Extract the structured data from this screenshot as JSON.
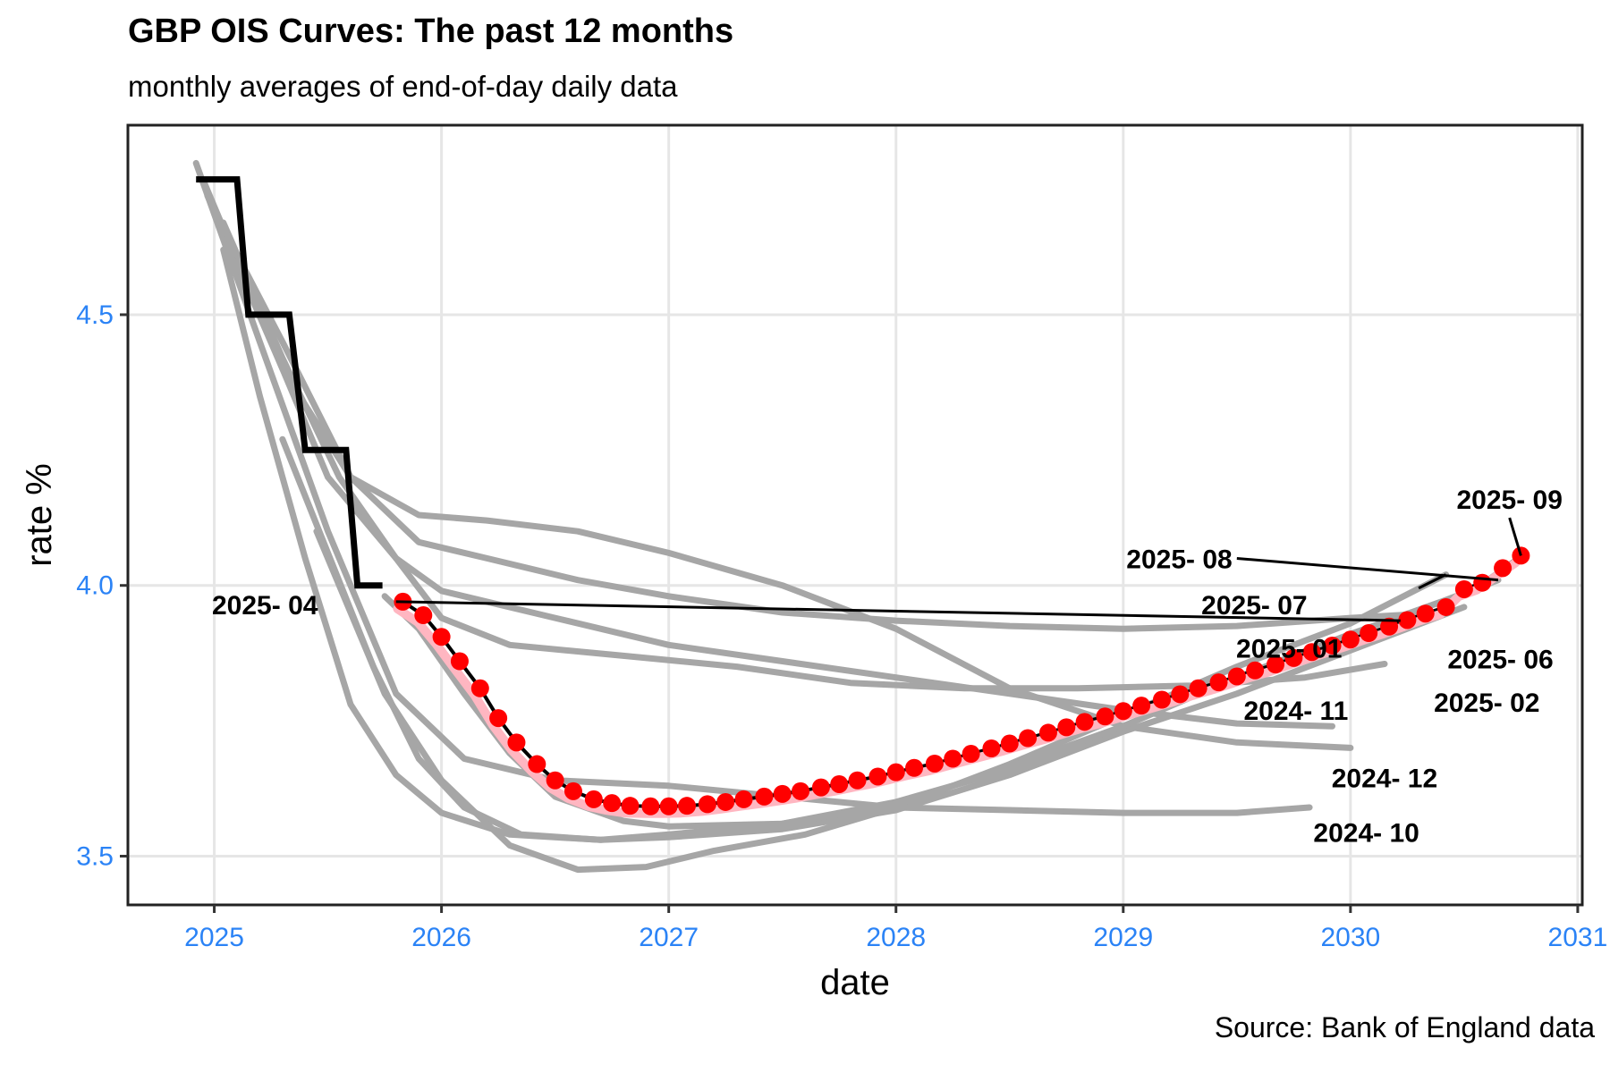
{
  "chart_data": {
    "type": "line",
    "title": "GBP OIS Curves: The past 12 months",
    "subtitle": "monthly averages of end-of-day daily data",
    "caption": "Source: Bank of England data",
    "xlabel": "date",
    "ylabel": "rate %",
    "xlim": [
      2024.62,
      2031.02
    ],
    "ylim": [
      3.41,
      4.85
    ],
    "x_ticks": [
      2025,
      2026,
      2027,
      2028,
      2029,
      2030,
      2031
    ],
    "y_ticks": [
      3.5,
      4.0,
      4.5
    ],
    "grid": true,
    "legend": "none",
    "colors": {
      "historic": "#a6a6a6",
      "policy_step": "#000000",
      "latest_points": "#ff0000",
      "latest_smooth": "#ffb6c1",
      "ticks": "#2b83f6"
    },
    "series": [
      {
        "name": "2024- 10",
        "label_pos": [
          2030.07,
          3.545
        ],
        "label_align": "middle",
        "points": [
          [
            2024.92,
            4.78
          ],
          [
            2025.2,
            4.45
          ],
          [
            2025.5,
            4.1
          ],
          [
            2025.8,
            3.8
          ],
          [
            2026.1,
            3.68
          ],
          [
            2026.5,
            3.64
          ],
          [
            2027.0,
            3.63
          ],
          [
            2027.5,
            3.61
          ],
          [
            2028.0,
            3.59
          ],
          [
            2028.5,
            3.585
          ],
          [
            2029.0,
            3.58
          ],
          [
            2029.5,
            3.58
          ],
          [
            2029.82,
            3.59
          ]
        ]
      },
      {
        "name": "2024- 11",
        "label_pos": [
          2029.76,
          3.77
        ],
        "label_align": "middle",
        "points": [
          [
            2024.95,
            4.75
          ],
          [
            2025.2,
            4.5
          ],
          [
            2025.5,
            4.2
          ],
          [
            2025.8,
            4.05
          ],
          [
            2026.0,
            3.99
          ],
          [
            2026.5,
            3.94
          ],
          [
            2027.0,
            3.89
          ],
          [
            2027.5,
            3.86
          ],
          [
            2028.0,
            3.83
          ],
          [
            2028.5,
            3.8
          ],
          [
            2029.0,
            3.77
          ],
          [
            2029.5,
            3.745
          ],
          [
            2029.92,
            3.74
          ]
        ]
      },
      {
        "name": "2024- 12",
        "label_pos": [
          2030.15,
          3.645
        ],
        "label_align": "middle",
        "points": [
          [
            2024.97,
            4.72
          ],
          [
            2025.3,
            4.4
          ],
          [
            2025.6,
            4.2
          ],
          [
            2025.9,
            4.13
          ],
          [
            2026.2,
            4.12
          ],
          [
            2026.6,
            4.1
          ],
          [
            2027.0,
            4.06
          ],
          [
            2027.5,
            4.0
          ],
          [
            2028.0,
            3.92
          ],
          [
            2028.5,
            3.81
          ],
          [
            2029.0,
            3.74
          ],
          [
            2029.5,
            3.71
          ],
          [
            2030.0,
            3.7
          ]
        ]
      },
      {
        "name": "2025- 01",
        "label_pos": [
          2029.73,
          3.885
        ],
        "label_align": "middle",
        "points": [
          [
            2024.99,
            4.7
          ],
          [
            2025.3,
            4.45
          ],
          [
            2025.6,
            4.2
          ],
          [
            2025.9,
            4.08
          ],
          [
            2026.2,
            4.05
          ],
          [
            2026.6,
            4.01
          ],
          [
            2027.0,
            3.98
          ],
          [
            2027.5,
            3.95
          ],
          [
            2028.0,
            3.935
          ],
          [
            2028.5,
            3.925
          ],
          [
            2029.0,
            3.92
          ],
          [
            2029.5,
            3.925
          ],
          [
            2030.0,
            3.94
          ],
          [
            2030.42,
            3.95
          ]
        ]
      },
      {
        "name": "2025- 02",
        "label_pos": [
          2030.6,
          3.785
        ],
        "label_align": "middle",
        "points": [
          [
            2025.04,
            4.67
          ],
          [
            2025.3,
            4.42
          ],
          [
            2025.55,
            4.2
          ],
          [
            2025.8,
            4.05
          ],
          [
            2026.0,
            3.94
          ],
          [
            2026.3,
            3.89
          ],
          [
            2026.8,
            3.87
          ],
          [
            2027.3,
            3.85
          ],
          [
            2027.8,
            3.82
          ],
          [
            2028.3,
            3.81
          ],
          [
            2028.8,
            3.81
          ],
          [
            2029.3,
            3.815
          ],
          [
            2029.8,
            3.83
          ],
          [
            2030.15,
            3.855
          ]
        ]
      },
      {
        "name": "2025- 04",
        "label_pos": [
          2024.99,
          3.965
        ],
        "label_align": "start",
        "points": [
          [
            2025.04,
            4.62
          ],
          [
            2025.2,
            4.35
          ],
          [
            2025.4,
            4.05
          ],
          [
            2025.6,
            3.78
          ],
          [
            2025.8,
            3.65
          ],
          [
            2026.0,
            3.58
          ],
          [
            2026.3,
            3.54
          ],
          [
            2026.7,
            3.53
          ],
          [
            2027.0,
            3.535
          ],
          [
            2027.5,
            3.55
          ],
          [
            2028.0,
            3.585
          ],
          [
            2028.5,
            3.65
          ],
          [
            2029.0,
            3.73
          ],
          [
            2029.5,
            3.8
          ],
          [
            2030.0,
            3.88
          ],
          [
            2030.5,
            3.96
          ]
        ]
      },
      {
        "name": "2025- 06",
        "label_pos": [
          2030.66,
          3.865
        ],
        "label_align": "middle",
        "points": [
          [
            2025.3,
            4.27
          ],
          [
            2025.5,
            4.06
          ],
          [
            2025.7,
            3.85
          ],
          [
            2025.9,
            3.68
          ],
          [
            2026.1,
            3.59
          ],
          [
            2026.35,
            3.54
          ],
          [
            2026.7,
            3.53
          ],
          [
            2027.0,
            3.54
          ],
          [
            2027.5,
            3.56
          ],
          [
            2028.0,
            3.6
          ],
          [
            2028.5,
            3.66
          ],
          [
            2029.0,
            3.74
          ],
          [
            2029.5,
            3.83
          ],
          [
            2030.0,
            3.91
          ],
          [
            2030.4,
            3.97
          ]
        ]
      },
      {
        "name": "2025- 07",
        "label_pos": [
          2029.81,
          3.965
        ],
        "label_align": "end",
        "points": [
          [
            2025.45,
            4.1
          ],
          [
            2025.6,
            3.95
          ],
          [
            2025.75,
            3.8
          ],
          [
            2026.0,
            3.64
          ],
          [
            2026.3,
            3.52
          ],
          [
            2026.6,
            3.475
          ],
          [
            2026.9,
            3.48
          ],
          [
            2027.2,
            3.51
          ],
          [
            2027.6,
            3.54
          ],
          [
            2028.0,
            3.59
          ],
          [
            2028.5,
            3.67
          ],
          [
            2029.0,
            3.76
          ],
          [
            2029.5,
            3.85
          ],
          [
            2030.0,
            3.93
          ],
          [
            2030.42,
            4.02
          ]
        ]
      },
      {
        "name": "2025- 08",
        "label_pos": [
          2029.48,
          4.05
        ],
        "label_align": "end",
        "points": [
          [
            2025.75,
            3.98
          ],
          [
            2025.9,
            3.92
          ],
          [
            2026.1,
            3.8
          ],
          [
            2026.3,
            3.69
          ],
          [
            2026.5,
            3.61
          ],
          [
            2026.8,
            3.565
          ],
          [
            2027.0,
            3.555
          ],
          [
            2027.5,
            3.56
          ],
          [
            2028.0,
            3.595
          ],
          [
            2028.5,
            3.665
          ],
          [
            2029.0,
            3.74
          ],
          [
            2029.5,
            3.83
          ],
          [
            2030.0,
            3.91
          ],
          [
            2030.4,
            3.97
          ],
          [
            2030.65,
            4.01
          ]
        ]
      },
      {
        "name": "2025- 09",
        "label_pos": [
          2030.7,
          4.16
        ],
        "label_align": "middle",
        "points": [
          [
            2025.83,
            3.97
          ],
          [
            2025.92,
            3.945
          ],
          [
            2026.0,
            3.905
          ],
          [
            2026.08,
            3.86
          ],
          [
            2026.17,
            3.81
          ],
          [
            2026.25,
            3.755
          ],
          [
            2026.33,
            3.71
          ],
          [
            2026.42,
            3.67
          ],
          [
            2026.5,
            3.64
          ],
          [
            2026.58,
            3.62
          ],
          [
            2026.67,
            3.605
          ],
          [
            2026.75,
            3.598
          ],
          [
            2026.83,
            3.593
          ],
          [
            2026.92,
            3.592
          ],
          [
            2027.0,
            3.592
          ],
          [
            2027.08,
            3.593
          ],
          [
            2027.17,
            3.596
          ],
          [
            2027.25,
            3.6
          ],
          [
            2027.33,
            3.605
          ],
          [
            2027.42,
            3.61
          ],
          [
            2027.5,
            3.615
          ],
          [
            2027.58,
            3.62
          ],
          [
            2027.67,
            3.627
          ],
          [
            2027.75,
            3.633
          ],
          [
            2027.83,
            3.64
          ],
          [
            2027.92,
            3.647
          ],
          [
            2028.0,
            3.655
          ],
          [
            2028.08,
            3.663
          ],
          [
            2028.17,
            3.671
          ],
          [
            2028.25,
            3.68
          ],
          [
            2028.33,
            3.689
          ],
          [
            2028.42,
            3.699
          ],
          [
            2028.5,
            3.708
          ],
          [
            2028.58,
            3.718
          ],
          [
            2028.67,
            3.728
          ],
          [
            2028.75,
            3.738
          ],
          [
            2028.83,
            3.748
          ],
          [
            2028.92,
            3.758
          ],
          [
            2029.0,
            3.768
          ],
          [
            2029.08,
            3.778
          ],
          [
            2029.17,
            3.789
          ],
          [
            2029.25,
            3.799
          ],
          [
            2029.33,
            3.81
          ],
          [
            2029.42,
            3.821
          ],
          [
            2029.5,
            3.832
          ],
          [
            2029.58,
            3.843
          ],
          [
            2029.67,
            3.854
          ],
          [
            2029.75,
            3.866
          ],
          [
            2029.83,
            3.877
          ],
          [
            2029.92,
            3.889
          ],
          [
            2030.0,
            3.9
          ],
          [
            2030.08,
            3.912
          ],
          [
            2030.17,
            3.924
          ],
          [
            2030.25,
            3.936
          ],
          [
            2030.33,
            3.948
          ],
          [
            2030.42,
            3.96
          ],
          [
            2030.5,
            3.993
          ],
          [
            2030.58,
            4.005
          ],
          [
            2030.67,
            4.032
          ],
          [
            2030.75,
            4.055
          ]
        ]
      }
    ],
    "policy_rate_steps": [
      [
        2024.92,
        4.75
      ],
      [
        2025.1,
        4.75
      ],
      [
        2025.15,
        4.5
      ],
      [
        2025.33,
        4.5
      ],
      [
        2025.4,
        4.25
      ],
      [
        2025.58,
        4.25
      ],
      [
        2025.63,
        4.0
      ],
      [
        2025.74,
        4.0
      ]
    ]
  }
}
